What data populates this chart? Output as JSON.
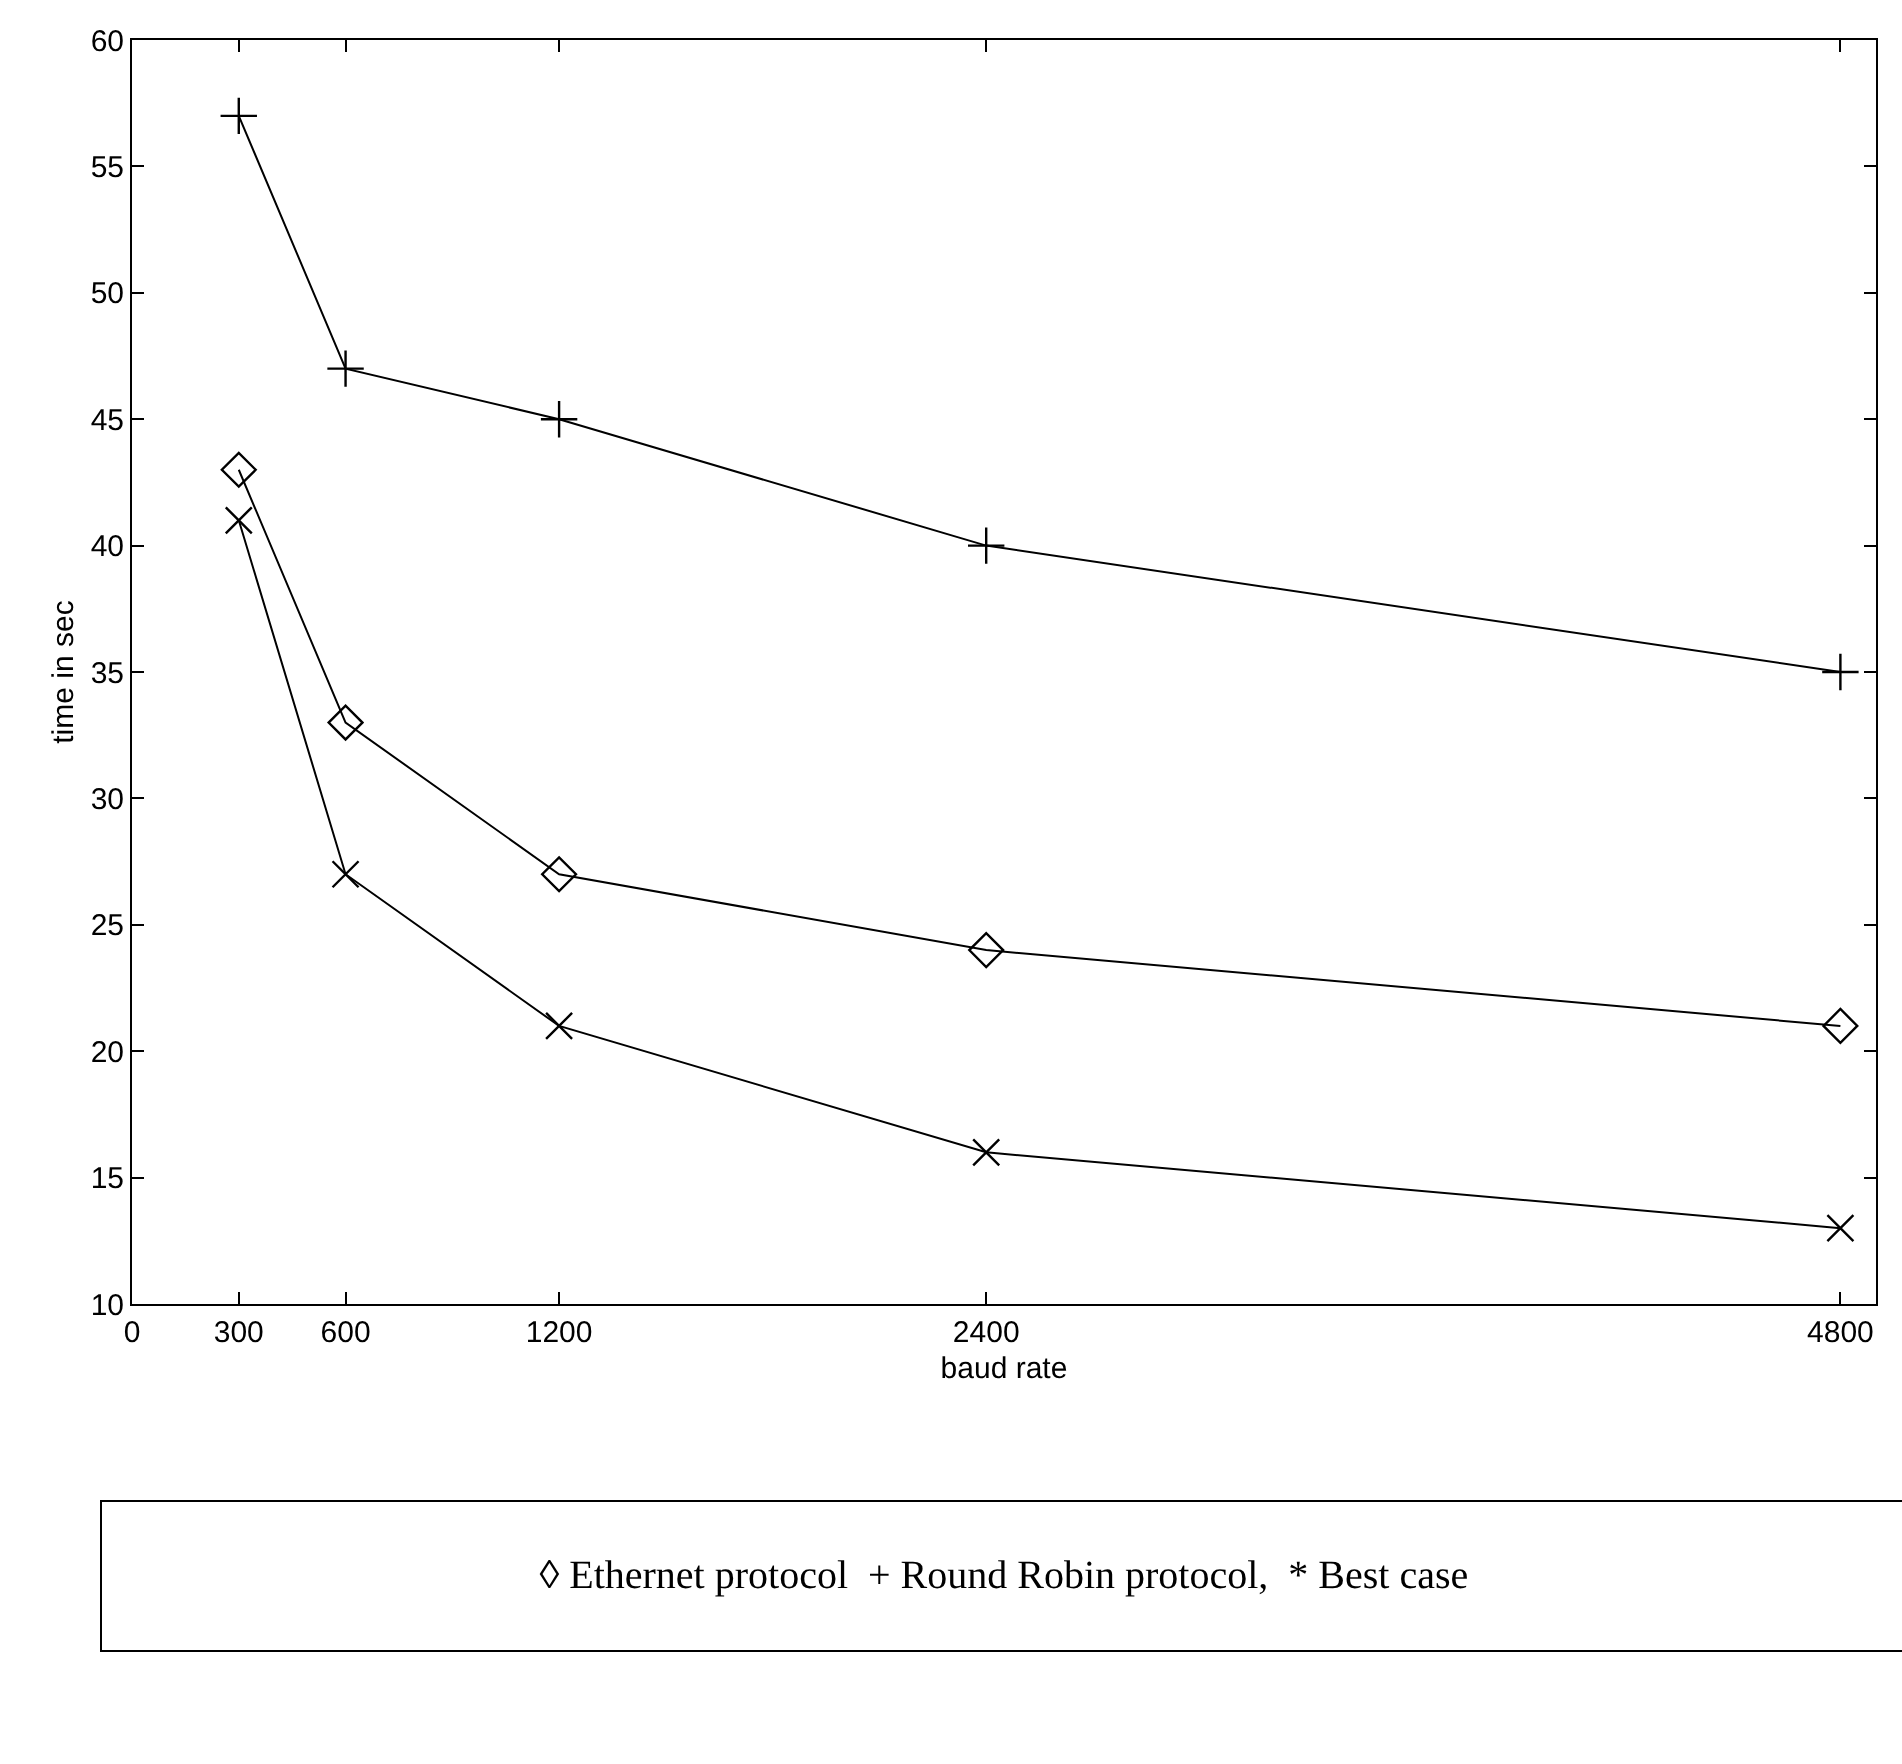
{
  "chart_data": {
    "type": "line",
    "xlabel": "baud rate",
    "ylabel": "time in sec",
    "x": [
      300,
      600,
      1200,
      2400,
      4800
    ],
    "xlim": [
      0,
      4900
    ],
    "xticks": [
      0,
      300,
      600,
      1200,
      2400,
      4800
    ],
    "ylim": [
      10,
      60
    ],
    "yticks": [
      10,
      15,
      20,
      25,
      30,
      35,
      40,
      45,
      50,
      55,
      60
    ],
    "grid": false,
    "line_style": "solid",
    "series": [
      {
        "color": "#000000",
        "marker": "cross",
        "values": [
          57,
          47,
          45,
          40,
          35
        ]
      },
      {
        "color": "#000000",
        "marker": "diamond",
        "values": [
          43,
          33,
          27,
          24,
          21
        ]
      },
      {
        "color": "#000000",
        "marker": "cross",
        "values": [
          41,
          27,
          21,
          16,
          13
        ]
      }
    ],
    "annotations": [
      "◊ Ethernet protocol  + Round Robin protocol,  * Best case"
    ]
  }
}
